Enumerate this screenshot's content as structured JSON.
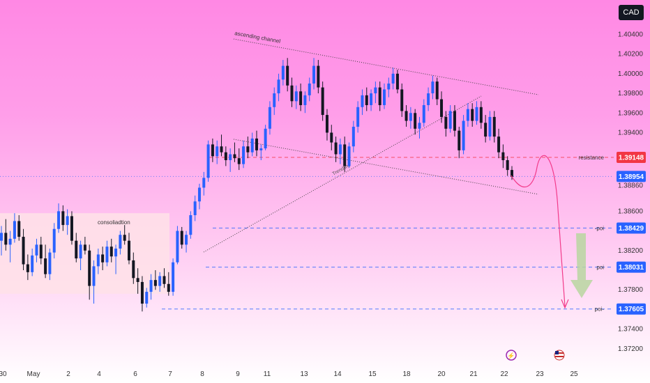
{
  "currency_label": "CAD",
  "chart_data": {
    "type": "candlestick",
    "y_axis": {
      "min": 1.371,
      "max": 1.4075,
      "ticks": [
        "1.40400",
        "1.40200",
        "1.40000",
        "1.39800",
        "1.39600",
        "1.39400",
        "1.38860",
        "1.38600",
        "1.38200",
        "1.37800",
        "1.37400",
        "1.37200"
      ]
    },
    "x_axis": {
      "labels": [
        "30",
        "May",
        "2",
        "4",
        "6",
        "7",
        "8",
        "9",
        "11",
        "13",
        "14",
        "15",
        "18",
        "20",
        "21",
        "22",
        "23",
        "25"
      ]
    },
    "series": [
      {
        "ohlc": [
          [
            1.383,
            1.3845,
            1.3815,
            1.3838
          ],
          [
            1.3838,
            1.3852,
            1.382,
            1.3826
          ],
          [
            1.3826,
            1.384,
            1.3808,
            1.3832
          ],
          [
            1.3832,
            1.3858,
            1.3828,
            1.385
          ],
          [
            1.385,
            1.3856,
            1.383,
            1.3834
          ],
          [
            1.3834,
            1.3842,
            1.38,
            1.3806
          ],
          [
            1.3806,
            1.3816,
            1.379,
            1.3798
          ],
          [
            1.3798,
            1.3822,
            1.3794,
            1.3815
          ],
          [
            1.3815,
            1.3832,
            1.3808,
            1.3826
          ],
          [
            1.3826,
            1.3834,
            1.3806,
            1.3812
          ],
          [
            1.3812,
            1.3826,
            1.3792,
            1.3796
          ],
          [
            1.3796,
            1.3822,
            1.379,
            1.3818
          ],
          [
            1.3818,
            1.3848,
            1.3812,
            1.3842
          ],
          [
            1.3842,
            1.3868,
            1.3838,
            1.386
          ],
          [
            1.386,
            1.3866,
            1.384,
            1.3846
          ],
          [
            1.3846,
            1.3862,
            1.3836,
            1.3855
          ],
          [
            1.3855,
            1.386,
            1.3826,
            1.383
          ],
          [
            1.383,
            1.3838,
            1.3808,
            1.3812
          ],
          [
            1.3812,
            1.383,
            1.38,
            1.3826
          ],
          [
            1.3826,
            1.3834,
            1.3816,
            1.382
          ],
          [
            1.382,
            1.3826,
            1.377,
            1.3784
          ],
          [
            1.3784,
            1.381,
            1.3766,
            1.3804
          ],
          [
            1.3804,
            1.3822,
            1.3796,
            1.3816
          ],
          [
            1.3816,
            1.3824,
            1.38,
            1.3808
          ],
          [
            1.3808,
            1.383,
            1.3804,
            1.3824
          ],
          [
            1.3824,
            1.3832,
            1.3808,
            1.3814
          ],
          [
            1.3814,
            1.3826,
            1.3796,
            1.3822
          ],
          [
            1.3822,
            1.384,
            1.3816,
            1.3836
          ],
          [
            1.3836,
            1.3846,
            1.3826,
            1.383
          ],
          [
            1.383,
            1.3838,
            1.3806,
            1.381
          ],
          [
            1.381,
            1.3818,
            1.3786,
            1.3792
          ],
          [
            1.3792,
            1.3802,
            1.3776,
            1.3788
          ],
          [
            1.3788,
            1.3794,
            1.3758,
            1.3766
          ],
          [
            1.3766,
            1.3782,
            1.3762,
            1.3778
          ],
          [
            1.3778,
            1.3796,
            1.377,
            1.379
          ],
          [
            1.379,
            1.38,
            1.378,
            1.3784
          ],
          [
            1.3784,
            1.3798,
            1.3778,
            1.3794
          ],
          [
            1.3794,
            1.3802,
            1.3782,
            1.3786
          ],
          [
            1.3786,
            1.3798,
            1.3774,
            1.3778
          ],
          [
            1.3778,
            1.3812,
            1.3774,
            1.3808
          ],
          [
            1.3808,
            1.3845,
            1.3806,
            1.384
          ],
          [
            1.384,
            1.3844,
            1.3822,
            1.3826
          ],
          [
            1.3826,
            1.384,
            1.3818,
            1.3836
          ],
          [
            1.3836,
            1.386,
            1.3832,
            1.3856
          ],
          [
            1.3856,
            1.3876,
            1.385,
            1.387
          ],
          [
            1.387,
            1.3888,
            1.3862,
            1.3884
          ],
          [
            1.3884,
            1.39,
            1.3876,
            1.3894
          ],
          [
            1.3894,
            1.3932,
            1.389,
            1.3928
          ],
          [
            1.3928,
            1.3934,
            1.391,
            1.3916
          ],
          [
            1.3916,
            1.3932,
            1.3908,
            1.3926
          ],
          [
            1.3926,
            1.3938,
            1.3916,
            1.392
          ],
          [
            1.392,
            1.3926,
            1.3906,
            1.3912
          ],
          [
            1.3912,
            1.3924,
            1.39,
            1.3918
          ],
          [
            1.3918,
            1.393,
            1.391,
            1.3914
          ],
          [
            1.3914,
            1.3924,
            1.3902,
            1.3908
          ],
          [
            1.3908,
            1.3932,
            1.3904,
            1.3926
          ],
          [
            1.3926,
            1.3936,
            1.3914,
            1.392
          ],
          [
            1.392,
            1.394,
            1.3916,
            1.3934
          ],
          [
            1.3934,
            1.3942,
            1.3916,
            1.3922
          ],
          [
            1.3922,
            1.3928,
            1.3912,
            1.3924
          ],
          [
            1.3924,
            1.3948,
            1.3922,
            1.3944
          ],
          [
            1.3944,
            1.3972,
            1.3938,
            1.3966
          ],
          [
            1.3966,
            1.3986,
            1.3958,
            1.398
          ],
          [
            1.398,
            1.4,
            1.3972,
            1.3994
          ],
          [
            1.3994,
            1.4014,
            1.3988,
            1.4008
          ],
          [
            1.4008,
            1.4016,
            1.3982,
            1.3988
          ],
          [
            1.3988,
            1.3996,
            1.3966,
            1.3972
          ],
          [
            1.3972,
            1.3988,
            1.3964,
            1.3982
          ],
          [
            1.3982,
            1.399,
            1.3962,
            1.3968
          ],
          [
            1.3968,
            1.3982,
            1.396,
            1.3978
          ],
          [
            1.3978,
            1.3996,
            1.3972,
            1.399
          ],
          [
            1.399,
            1.4016,
            1.3984,
            1.4008
          ],
          [
            1.4008,
            1.4014,
            1.398,
            1.3986
          ],
          [
            1.3986,
            1.3992,
            1.3952,
            1.3958
          ],
          [
            1.3958,
            1.3964,
            1.3932,
            1.394
          ],
          [
            1.394,
            1.3948,
            1.3922,
            1.393
          ],
          [
            1.393,
            1.3936,
            1.391,
            1.3918
          ],
          [
            1.3918,
            1.3934,
            1.3908,
            1.3928
          ],
          [
            1.3928,
            1.3936,
            1.39,
            1.3906
          ],
          [
            1.3906,
            1.393,
            1.3904,
            1.3926
          ],
          [
            1.3926,
            1.3952,
            1.392,
            1.3946
          ],
          [
            1.3946,
            1.3972,
            1.394,
            1.3966
          ],
          [
            1.3966,
            1.3984,
            1.3958,
            1.3978
          ],
          [
            1.3978,
            1.3986,
            1.3962,
            1.3968
          ],
          [
            1.3968,
            1.3984,
            1.3962,
            1.398
          ],
          [
            1.398,
            1.3992,
            1.397,
            1.3986
          ],
          [
            1.3986,
            1.3992,
            1.3962,
            1.3968
          ],
          [
            1.3968,
            1.399,
            1.3964,
            1.3984
          ],
          [
            1.3984,
            1.3996,
            1.3976,
            1.399
          ],
          [
            1.399,
            1.4006,
            1.3984,
            1.4
          ],
          [
            1.4,
            1.4004,
            1.398,
            1.3984
          ],
          [
            1.3984,
            1.399,
            1.3956,
            1.3962
          ],
          [
            1.3962,
            1.3968,
            1.3946,
            1.3952
          ],
          [
            1.3952,
            1.3966,
            1.3944,
            1.396
          ],
          [
            1.396,
            1.3964,
            1.3938,
            1.3944
          ],
          [
            1.3944,
            1.3956,
            1.3934,
            1.395
          ],
          [
            1.395,
            1.3974,
            1.3946,
            1.3968
          ],
          [
            1.3968,
            1.3986,
            1.3962,
            1.398
          ],
          [
            1.398,
            1.3998,
            1.3974,
            1.3992
          ],
          [
            1.3992,
            1.3996,
            1.3968,
            1.3974
          ],
          [
            1.3974,
            1.3982,
            1.395,
            1.3956
          ],
          [
            1.3956,
            1.3962,
            1.3936,
            1.3944
          ],
          [
            1.3944,
            1.3968,
            1.394,
            1.3962
          ],
          [
            1.3962,
            1.3968,
            1.3936,
            1.3942
          ],
          [
            1.3942,
            1.3946,
            1.3914,
            1.3922
          ],
          [
            1.3922,
            1.3958,
            1.3918,
            1.3952
          ],
          [
            1.3952,
            1.397,
            1.3946,
            1.3964
          ],
          [
            1.3964,
            1.397,
            1.3946,
            1.3952
          ],
          [
            1.3952,
            1.3972,
            1.3948,
            1.3966
          ],
          [
            1.3966,
            1.3972,
            1.3944,
            1.395
          ],
          [
            1.395,
            1.3958,
            1.393,
            1.3936
          ],
          [
            1.3936,
            1.3962,
            1.3932,
            1.3956
          ],
          [
            1.3956,
            1.3962,
            1.393,
            1.3936
          ],
          [
            1.3936,
            1.3944,
            1.3914,
            1.392
          ],
          [
            1.392,
            1.3928,
            1.3904,
            1.3912
          ],
          [
            1.3912,
            1.3916,
            1.3896,
            1.3902
          ],
          [
            1.3902,
            1.3906,
            1.3892,
            1.3895
          ]
        ]
      }
    ],
    "zones": [
      {
        "label": "consoliadtion",
        "y_top": 1.3858,
        "y_bottom": 1.3776
      }
    ],
    "levels": [
      {
        "label": "resistance",
        "value": 1.39148,
        "tag": "1.39148",
        "color": "#f23645"
      },
      {
        "label": "-poi",
        "value": 1.38429,
        "tag": "1.38429",
        "color": "#2962ff"
      },
      {
        "label": "poi",
        "value": 1.38031,
        "tag": "1.38031",
        "color": "#2962ff"
      },
      {
        "label": "poi-",
        "value": 1.37605,
        "tag": "1.37605",
        "color": "#2962ff"
      }
    ],
    "current_price": {
      "value": 1.38954,
      "tag": "1.38954",
      "color": "#2962ff"
    },
    "annotations": [
      "ascending channel",
      "Trendline"
    ]
  }
}
